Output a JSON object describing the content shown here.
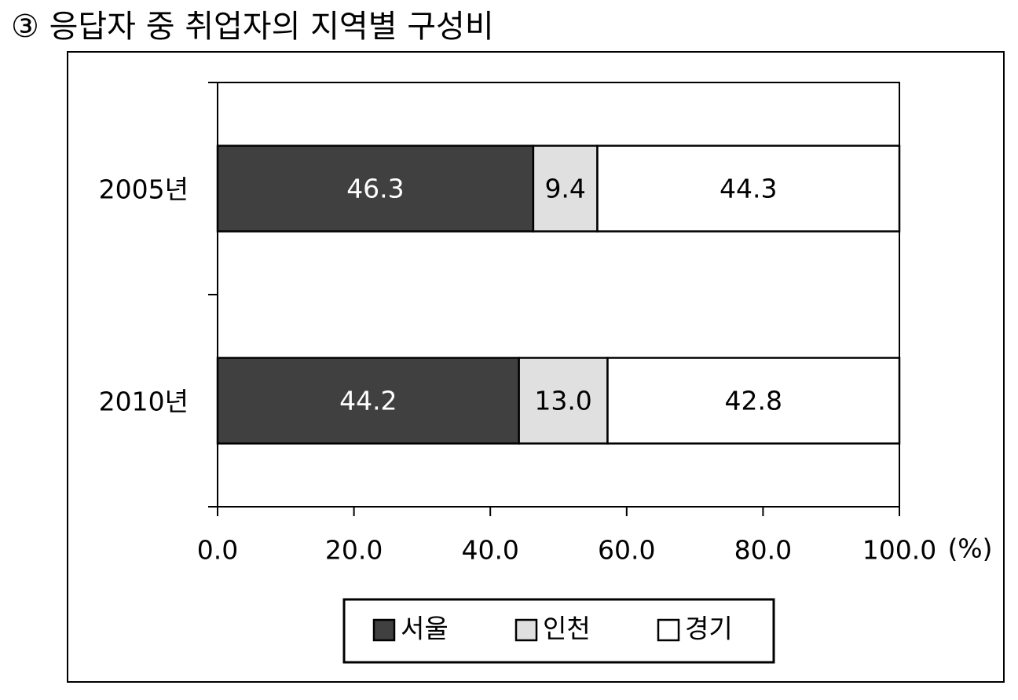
{
  "chart_data": {
    "type": "stacked-barh",
    "title": "③ 응답자 중 취업자의 지역별 구성비",
    "x_label": "(%)",
    "categories": [
      "2005년",
      "2010년"
    ],
    "series": [
      {
        "name": "서울",
        "color": "#404040",
        "label_color": "#ffffff",
        "values": [
          46.3,
          44.2
        ],
        "value_labels": [
          "46.3",
          "44.2"
        ]
      },
      {
        "name": "인천",
        "color": "#e0e0e0",
        "label_color": "#000000",
        "values": [
          9.4,
          13.0
        ],
        "value_labels": [
          "9.4",
          "13.0"
        ]
      },
      {
        "name": "경기",
        "color": "#ffffff",
        "label_color": "#000000",
        "values": [
          44.3,
          42.8
        ],
        "value_labels": [
          "44.3",
          "42.8"
        ]
      }
    ],
    "xlim": [
      0,
      100
    ],
    "xticks": [
      {
        "value": 0,
        "label": "0.0"
      },
      {
        "value": 20,
        "label": "20.0"
      },
      {
        "value": 40,
        "label": "40.0"
      },
      {
        "value": 60,
        "label": "60.0"
      },
      {
        "value": 80,
        "label": "80.0"
      },
      {
        "value": 100,
        "label": "100.0"
      }
    ],
    "legend": "bottom"
  }
}
